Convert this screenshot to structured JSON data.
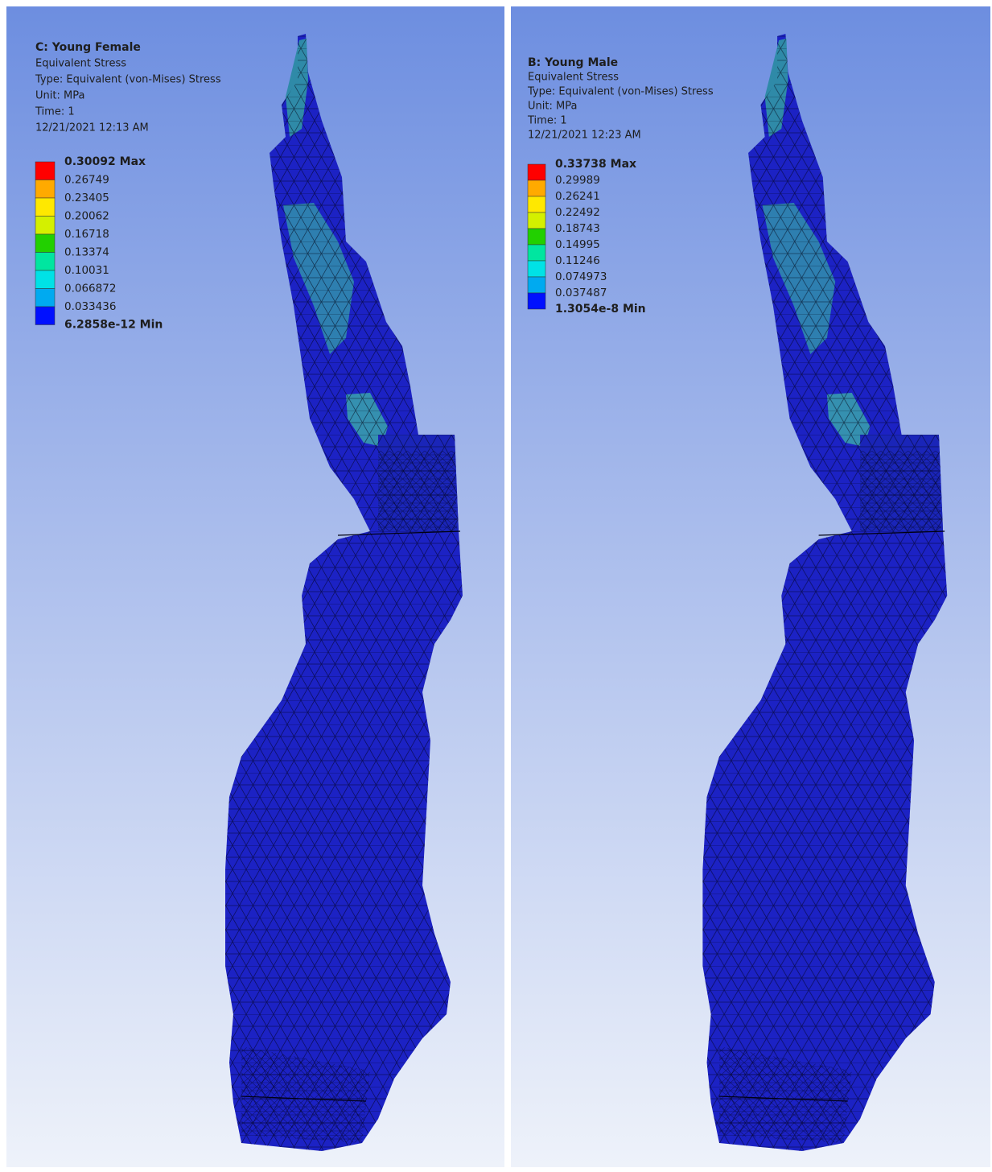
{
  "panels": [
    {
      "title": "C: Young Female",
      "lines": [
        "Equivalent Stress",
        "Type: Equivalent (von-Mises) Stress",
        "Unit: MPa",
        "Time: 1",
        "12/21/2021 12:13 AM"
      ],
      "legend": [
        "0.30092 Max",
        "0.26749",
        "0.23405",
        "0.20062",
        "0.16718",
        "0.13374",
        "0.10031",
        "0.066872",
        "0.033436",
        "6.2858e-12 Min"
      ]
    },
    {
      "title": "B: Young Male",
      "lines": [
        "Equivalent Stress",
        "Type: Equivalent (von-Mises) Stress",
        "Unit: MPa",
        "Time: 1",
        "12/21/2021 12:23 AM"
      ],
      "legend": [
        "0.33738 Max",
        "0.29989",
        "0.26241",
        "0.22492",
        "0.18743",
        "0.14995",
        "0.11246",
        "0.074973",
        "0.037487",
        "1.3054e-8 Min"
      ]
    }
  ]
}
